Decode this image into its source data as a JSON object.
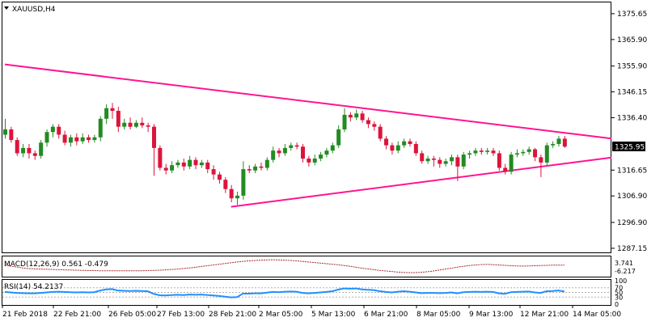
{
  "window": {
    "symbol_title": "XAUUSD,H4",
    "menu_icon": "triangle-down-icon"
  },
  "colors": {
    "background": "#ffffff",
    "frame": "#000000",
    "bull_candle": "#228b22",
    "bear_candle": "#dc143c",
    "trendline": "#ff1493",
    "macd_signal": "#a52a2a",
    "rsi_line": "#1e90ff",
    "level_line": "#b0b0b0",
    "price_tag_bg": "#000000",
    "price_tag_text": "#ffffff"
  },
  "chart_data": [
    {
      "type": "candlestick",
      "title": "XAUUSD,H4",
      "x_tick_labels": [
        "21 Feb 2018",
        "22 Feb 21:00",
        "26 Feb 05:00",
        "27 Feb 13:00",
        "28 Feb 21:00",
        "2 Mar 05:00",
        "5 Mar 13:00",
        "6 Mar 21:00",
        "8 Mar 05:00",
        "9 Mar 13:00",
        "12 Mar 21:00",
        "14 Mar 05:00"
      ],
      "y_tick_labels": [
        "1375.65",
        "1365.90",
        "1355.90",
        "1346.15",
        "1336.40",
        "1316.65",
        "1306.90",
        "1296.90",
        "1287.15"
      ],
      "ylim": [
        1285.6,
        1379.9
      ],
      "current_price": "1325.95",
      "candles": [
        [
          1330.0,
          1332.0,
          1336.0,
          1328.5
        ],
        [
          1332.0,
          1328.0,
          1333.0,
          1327.0
        ],
        [
          1328.0,
          1323.0,
          1329.0,
          1322.0
        ],
        [
          1323.0,
          1325.0,
          1326.5,
          1321.5
        ],
        [
          1325.0,
          1323.0,
          1326.5,
          1321.0
        ],
        [
          1323.0,
          1322.0,
          1324.0,
          1320.5
        ],
        [
          1322.0,
          1327.0,
          1328.0,
          1321.0
        ],
        [
          1327.0,
          1331.0,
          1332.0,
          1325.5
        ],
        [
          1331.0,
          1333.0,
          1334.0,
          1329.0
        ],
        [
          1333.0,
          1330.0,
          1334.0,
          1328.5
        ],
        [
          1330.0,
          1327.0,
          1331.5,
          1326.0
        ],
        [
          1327.0,
          1329.0,
          1330.0,
          1325.5
        ],
        [
          1329.0,
          1327.5,
          1330.5,
          1326.0
        ],
        [
          1327.5,
          1329.0,
          1330.5,
          1326.5
        ],
        [
          1329.0,
          1328.0,
          1330.0,
          1327.0
        ],
        [
          1328.0,
          1329.0,
          1330.0,
          1327.0
        ],
        [
          1329.0,
          1336.0,
          1337.0,
          1327.5
        ],
        [
          1336.0,
          1340.0,
          1341.5,
          1334.0
        ],
        [
          1340.0,
          1339.0,
          1342.0,
          1336.0
        ],
        [
          1339.0,
          1333.0,
          1340.5,
          1331.0
        ],
        [
          1333.0,
          1334.5,
          1336.0,
          1332.0
        ],
        [
          1334.5,
          1333.0,
          1336.5,
          1332.0
        ],
        [
          1333.0,
          1334.5,
          1335.5,
          1332.5
        ],
        [
          1334.5,
          1333.5,
          1336.5,
          1332.5
        ],
        [
          1333.5,
          1333.0,
          1334.5,
          1331.0
        ],
        [
          1333.0,
          1325.0,
          1334.0,
          1314.5
        ],
        [
          1325.0,
          1317.5,
          1326.0,
          1316.5
        ],
        [
          1317.5,
          1316.5,
          1319.0,
          1315.0
        ],
        [
          1316.5,
          1318.5,
          1320.0,
          1315.5
        ],
        [
          1318.5,
          1319.5,
          1320.5,
          1317.5
        ],
        [
          1319.5,
          1318.0,
          1321.0,
          1316.5
        ],
        [
          1318.0,
          1320.5,
          1322.0,
          1317.0
        ],
        [
          1320.5,
          1318.5,
          1321.5,
          1317.0
        ],
        [
          1318.5,
          1319.5,
          1320.5,
          1317.5
        ],
        [
          1319.5,
          1317.0,
          1320.5,
          1315.5
        ],
        [
          1317.0,
          1315.0,
          1318.5,
          1313.0
        ],
        [
          1315.0,
          1313.0,
          1316.0,
          1311.5
        ],
        [
          1313.0,
          1309.5,
          1314.0,
          1308.0
        ],
        [
          1309.5,
          1306.0,
          1311.0,
          1304.5
        ],
        [
          1306.0,
          1307.0,
          1308.5,
          1303.5
        ],
        [
          1307.0,
          1317.0,
          1320.0,
          1305.5
        ],
        [
          1317.0,
          1316.5,
          1318.5,
          1315.5
        ],
        [
          1316.5,
          1318.0,
          1319.0,
          1315.5
        ],
        [
          1318.0,
          1317.5,
          1319.5,
          1316.5
        ],
        [
          1317.5,
          1320.5,
          1321.5,
          1316.5
        ],
        [
          1320.5,
          1324.0,
          1325.5,
          1319.5
        ],
        [
          1324.0,
          1323.0,
          1325.0,
          1321.5
        ],
        [
          1323.0,
          1325.0,
          1326.5,
          1322.0
        ],
        [
          1325.0,
          1326.0,
          1327.0,
          1324.0
        ],
        [
          1326.0,
          1325.5,
          1327.0,
          1324.5
        ],
        [
          1325.5,
          1321.0,
          1326.5,
          1319.5
        ],
        [
          1321.0,
          1319.5,
          1322.0,
          1318.0
        ],
        [
          1319.5,
          1321.0,
          1322.5,
          1318.5
        ],
        [
          1321.0,
          1322.5,
          1323.5,
          1320.0
        ],
        [
          1322.5,
          1324.0,
          1325.0,
          1321.5
        ],
        [
          1324.0,
          1326.0,
          1327.0,
          1323.0
        ],
        [
          1326.0,
          1332.0,
          1333.5,
          1325.0
        ],
        [
          1332.0,
          1337.5,
          1340.0,
          1331.0
        ],
        [
          1337.5,
          1336.5,
          1338.5,
          1335.0
        ],
        [
          1336.5,
          1338.0,
          1339.5,
          1335.5
        ],
        [
          1338.0,
          1335.5,
          1339.0,
          1334.5
        ],
        [
          1335.5,
          1334.0,
          1336.5,
          1332.5
        ],
        [
          1334.0,
          1333.0,
          1335.0,
          1331.5
        ],
        [
          1333.0,
          1328.5,
          1334.0,
          1327.5
        ],
        [
          1328.5,
          1326.0,
          1329.5,
          1324.5
        ],
        [
          1326.0,
          1324.0,
          1327.0,
          1322.5
        ],
        [
          1324.0,
          1326.0,
          1327.5,
          1323.0
        ],
        [
          1326.0,
          1327.5,
          1328.5,
          1325.0
        ],
        [
          1327.5,
          1326.5,
          1328.5,
          1325.5
        ],
        [
          1326.5,
          1323.0,
          1327.5,
          1322.0
        ],
        [
          1323.0,
          1320.0,
          1324.0,
          1319.0
        ],
        [
          1320.0,
          1321.0,
          1322.0,
          1319.0
        ],
        [
          1321.0,
          1320.5,
          1322.0,
          1318.0
        ],
        [
          1320.5,
          1319.0,
          1321.5,
          1317.5
        ],
        [
          1319.0,
          1320.0,
          1321.0,
          1318.0
        ],
        [
          1320.0,
          1321.5,
          1322.5,
          1318.5
        ],
        [
          1321.5,
          1318.0,
          1322.5,
          1312.5
        ],
        [
          1318.0,
          1322.5,
          1323.5,
          1317.0
        ],
        [
          1322.5,
          1323.0,
          1324.0,
          1321.0
        ],
        [
          1323.0,
          1324.0,
          1325.0,
          1322.0
        ],
        [
          1324.0,
          1323.5,
          1325.0,
          1322.5
        ],
        [
          1323.5,
          1324.0,
          1325.0,
          1322.5
        ],
        [
          1324.0,
          1323.0,
          1325.0,
          1322.0
        ],
        [
          1323.0,
          1317.5,
          1324.0,
          1316.5
        ],
        [
          1317.5,
          1316.0,
          1319.0,
          1315.0
        ],
        [
          1316.0,
          1322.5,
          1323.5,
          1315.0
        ],
        [
          1322.5,
          1323.0,
          1324.5,
          1321.5
        ],
        [
          1323.0,
          1323.5,
          1324.5,
          1322.0
        ],
        [
          1323.5,
          1324.5,
          1325.5,
          1322.5
        ],
        [
          1324.5,
          1321.5,
          1325.0,
          1320.0
        ],
        [
          1321.5,
          1319.5,
          1322.5,
          1314.0
        ],
        [
          1319.5,
          1326.0,
          1327.0,
          1318.5
        ],
        [
          1326.0,
          1326.5,
          1327.5,
          1325.0
        ],
        [
          1326.5,
          1328.5,
          1329.5,
          1325.5
        ],
        [
          1328.5,
          1325.5,
          1329.5,
          1325.0
        ]
      ],
      "trendlines": [
        {
          "name": "upper",
          "points": [
            [
              0,
              1356.5
            ],
            [
              93,
              1331.0
            ]
          ]
        },
        {
          "name": "lower",
          "points": [
            [
              38,
              1302.8
            ],
            [
              93,
              1318.8
            ]
          ]
        }
      ]
    },
    {
      "type": "line",
      "title": "MACD(12,26,9) 0.561 -0.479",
      "label": "MACD(12,26,9) 0.561 -0.479",
      "y_tick_labels": [
        "3.741",
        "-6.217"
      ],
      "signal": [
        -0.5,
        -1.0,
        -1.5,
        -2.0,
        -2.3,
        -2.5,
        -2.6,
        -2.7,
        -2.8,
        -2.9,
        -3.0,
        -3.1,
        -3.2,
        -3.3,
        -3.4,
        -3.4,
        -3.5,
        -3.5,
        -3.5,
        -3.5,
        -3.5,
        -3.5,
        -3.5,
        -3.5,
        -3.4,
        -3.3,
        -3.2,
        -3.0,
        -2.8,
        -2.6,
        -2.3,
        -2.0,
        -1.6,
        -1.2,
        -0.8,
        -0.4,
        0.0,
        0.4,
        0.8,
        1.2,
        1.5,
        1.8,
        2.0,
        2.2,
        2.3,
        2.4,
        2.3,
        2.2,
        2.0,
        1.8,
        1.5,
        1.2,
        0.9,
        0.6,
        0.3,
        0.0,
        -0.3,
        -0.7,
        -1.1,
        -1.6,
        -2.1,
        -2.5,
        -2.9,
        -3.3,
        -3.6,
        -3.9,
        -4.2,
        -4.4,
        -4.5,
        -4.5,
        -4.3,
        -4.0,
        -3.6,
        -3.1,
        -2.6,
        -2.1,
        -1.6,
        -1.1,
        -0.7,
        -0.4,
        -0.2,
        -0.1,
        -0.2,
        -0.4,
        -0.6,
        -0.8,
        -0.9,
        -1.0,
        -0.9,
        -0.8,
        -0.7,
        -0.6,
        -0.5,
        -0.48,
        -0.479
      ]
    },
    {
      "type": "line",
      "title": "RSI(14) 54.2137",
      "label": "RSI(14) 54.2137",
      "y_tick_labels": [
        "100",
        "70",
        "50",
        "30",
        "0"
      ],
      "ylim": [
        0,
        100
      ],
      "levels": [
        70,
        50,
        30
      ],
      "values": [
        52,
        50,
        48,
        47,
        46,
        46,
        48,
        50,
        52,
        53,
        52,
        51,
        50,
        51,
        50,
        51,
        58,
        63,
        64,
        58,
        57,
        56,
        57,
        56,
        55,
        44,
        38,
        37,
        39,
        40,
        39,
        41,
        40,
        41,
        39,
        37,
        35,
        32,
        29,
        30,
        45,
        45,
        46,
        46,
        49,
        52,
        51,
        53,
        54,
        53,
        48,
        46,
        48,
        50,
        52,
        55,
        62,
        67,
        66,
        67,
        63,
        61,
        60,
        55,
        52,
        50,
        53,
        55,
        53,
        50,
        47,
        48,
        48,
        47,
        48,
        50,
        46,
        51,
        52,
        53,
        52,
        53,
        52,
        46,
        44,
        51,
        52,
        53,
        54,
        50,
        48,
        55,
        56,
        58,
        54
      ]
    }
  ]
}
